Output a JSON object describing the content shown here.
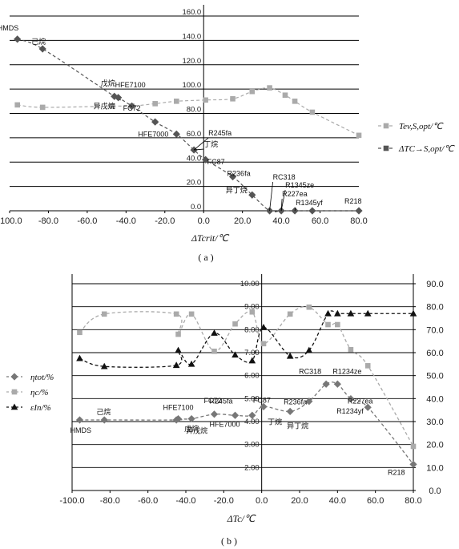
{
  "chart_data": [
    {
      "id": "a",
      "type": "line",
      "caption": "( a )",
      "xlabel": "ΔTcrit/℃",
      "xlim": [
        -100,
        80
      ],
      "ylim": [
        0,
        160
      ],
      "xticks": [
        "-100.0",
        "-80.0",
        "-60.0",
        "-40.0",
        "-20.0",
        "0.0",
        "20.0",
        "40.0",
        "60.0",
        "80.0"
      ],
      "yticks": [
        "0.0",
        "20.0",
        "40.0",
        "60.0",
        "80.0",
        "100.0",
        "120.0",
        "140.0",
        "160.0"
      ],
      "grid": "horizontal",
      "legend_position": "right",
      "series": [
        {
          "name": "Tev,S,opt/℃",
          "color": "#aaaaaa",
          "marker": "square",
          "x": [
            -96,
            -83,
            -47,
            -37,
            -25,
            -14,
            1,
            15,
            25,
            34,
            42,
            47,
            56,
            80
          ],
          "y": [
            87,
            85,
            86,
            86,
            88,
            90,
            91,
            92,
            98,
            101,
            95,
            90,
            81,
            62
          ]
        },
        {
          "name": "ΔTC→S,opt/℃",
          "color": "#555555",
          "marker": "diamond",
          "x": [
            -96,
            -83,
            -46,
            -44,
            -37,
            -25,
            -14,
            -5,
            1,
            15,
            25,
            34,
            40,
            47,
            56,
            80
          ],
          "y": [
            141,
            133,
            94,
            93,
            86,
            73,
            63,
            50,
            42,
            28,
            13,
            0,
            0,
            0,
            0,
            0
          ]
        }
      ],
      "point_labels": [
        {
          "text": "HMDS",
          "x": -96,
          "y": 141
        },
        {
          "text": "己烷",
          "x": -83,
          "y": 133
        },
        {
          "text": "戊烷",
          "x": -46,
          "y": 94
        },
        {
          "text": "HFE7100",
          "x": -44,
          "y": 93
        },
        {
          "text": "异戊烷",
          "x": -37,
          "y": 86
        },
        {
          "text": "FC72",
          "x": -25,
          "y": 73
        },
        {
          "text": "HFE7000",
          "x": -14,
          "y": 63
        },
        {
          "text": "R245fa",
          "x": -5,
          "y": 50
        },
        {
          "text": "丁烷",
          "x": -5,
          "y": 50
        },
        {
          "text": "FC87",
          "x": 1,
          "y": 42
        },
        {
          "text": "R236fa",
          "x": 15,
          "y": 28
        },
        {
          "text": "异丁烷",
          "x": 25,
          "y": 13
        },
        {
          "text": "RC318",
          "x": 34,
          "y": 0
        },
        {
          "text": "R1345ze",
          "x": 40,
          "y": 0
        },
        {
          "text": "R227ea",
          "x": 40,
          "y": 0
        },
        {
          "text": "R1345yf",
          "x": 47,
          "y": 0
        },
        {
          "text": "R218",
          "x": 80,
          "y": 0
        }
      ]
    },
    {
      "id": "b",
      "type": "line",
      "caption": "( b )",
      "xlabel": "ΔTc/℃",
      "xlim": [
        -100,
        80
      ],
      "ylim_left": [
        1,
        10
      ],
      "ylim_right": [
        0,
        90
      ],
      "xticks": [
        "-100.0",
        "-80.0",
        "-60.0",
        "-40.0",
        "-20.0",
        "0.0",
        "20.0",
        "40.0",
        "60.0",
        "80.0"
      ],
      "yticks_left": [
        "2.00",
        "3.00",
        "4.00",
        "5.00",
        "6.00",
        "7.00",
        "8.00",
        "9.00",
        "10.00"
      ],
      "yticks_right": [
        "0.0",
        "10.0",
        "20.0",
        "30.0",
        "40.0",
        "50.0",
        "60.0",
        "70.0",
        "80.0",
        "90.0"
      ],
      "grid": "horizontal",
      "legend_position": "left",
      "series": [
        {
          "name": "ηtot/%",
          "axis": "left",
          "color": "#777777",
          "marker": "diamond",
          "x": [
            -96,
            -83,
            -45,
            -44,
            -37,
            -25,
            -14,
            -5,
            1,
            15,
            25,
            34,
            40,
            47,
            56,
            80
          ],
          "y": [
            4.07,
            4.07,
            4.07,
            4.12,
            4.12,
            4.32,
            4.27,
            4.27,
            4.65,
            4.44,
            4.88,
            5.63,
            5.63,
            4.99,
            4.62,
            2.14
          ]
        },
        {
          "name": "ηc/%",
          "axis": "left",
          "color": "#aaaaaa",
          "marker": "square",
          "x": [
            -96,
            -83,
            -45,
            -44,
            -37,
            -25,
            -14,
            -5,
            1,
            15,
            25,
            35,
            40,
            47,
            56,
            80
          ],
          "y": [
            7.88,
            8.68,
            8.68,
            7.8,
            8.68,
            7.06,
            8.25,
            8.77,
            7.39,
            8.68,
            8.98,
            8.22,
            8.22,
            7.13,
            6.43,
            2.92
          ]
        },
        {
          "name": "εIn/%",
          "axis": "right",
          "color": "#111111",
          "marker": "triangle",
          "x": [
            -96,
            -83,
            -45,
            -44,
            -37,
            -25,
            -14,
            -5,
            1,
            15,
            25,
            35,
            40,
            47,
            56,
            80
          ],
          "y": [
            57.5,
            54,
            54.5,
            61,
            55,
            68.5,
            59,
            56.5,
            71,
            58.5,
            61,
            77,
            77,
            77,
            77,
            77
          ]
        }
      ],
      "point_labels": [
        {
          "text": "HMDS",
          "x": -96,
          "y": 4.07
        },
        {
          "text": "己烷",
          "x": -83,
          "y": 4.07
        },
        {
          "text": "HFE7100",
          "x": -44,
          "y": 4.12
        },
        {
          "text": "戊烷",
          "x": -45,
          "y": 4.07
        },
        {
          "text": "FC72",
          "x": -25,
          "y": 4.32
        },
        {
          "text": "异戊烷",
          "x": -37,
          "y": 4.12
        },
        {
          "text": "R245fa",
          "x": -14,
          "y": 4.27
        },
        {
          "text": "HFE7000",
          "x": -14,
          "y": 4.27
        },
        {
          "text": "FC87",
          "x": -5,
          "y": 4.27
        },
        {
          "text": "丁烷",
          "x": 1,
          "y": 4.65
        },
        {
          "text": "R236fa",
          "x": 15,
          "y": 4.44
        },
        {
          "text": "异丁烷",
          "x": 15,
          "y": 4.44
        },
        {
          "text": "RC318",
          "x": 34,
          "y": 5.63
        },
        {
          "text": "R1234ze",
          "x": 40,
          "y": 5.63
        },
        {
          "text": "R227ea",
          "x": 47,
          "y": 4.99
        },
        {
          "text": "R1234yf",
          "x": 56,
          "y": 4.62
        },
        {
          "text": "R218",
          "x": 80,
          "y": 2.14
        }
      ]
    }
  ]
}
